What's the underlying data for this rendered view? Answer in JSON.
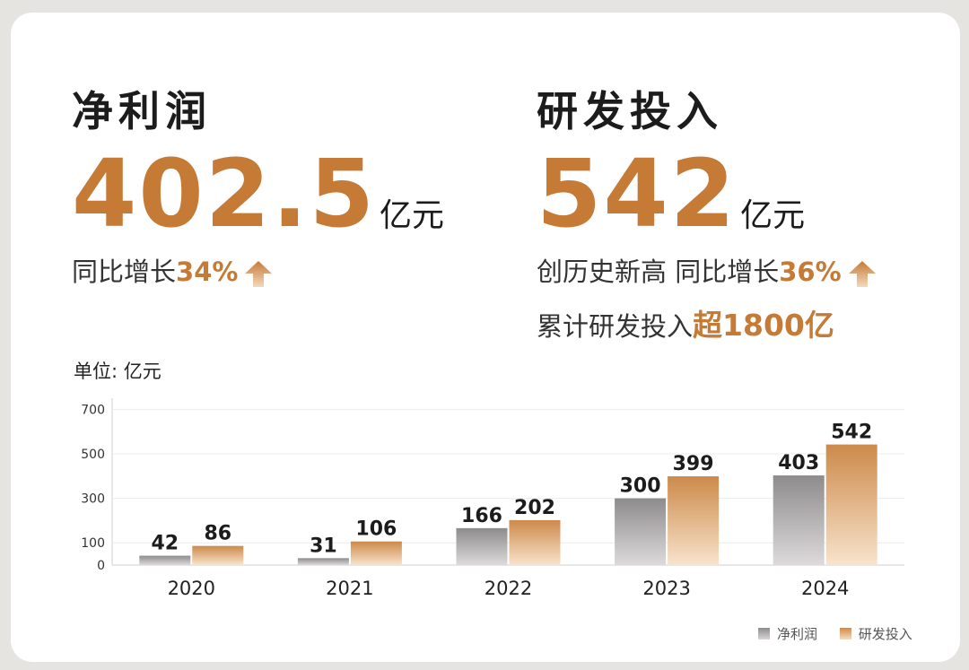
{
  "kpis": {
    "profit": {
      "title": "净利润",
      "value": "402.5",
      "unit": "亿元",
      "growth_prefix": "同比增长",
      "growth_value": "34%"
    },
    "rnd": {
      "title": "研发投入",
      "value": "542",
      "unit": "亿元",
      "record_text": "创历史新高 同比增长",
      "growth_value": "36%",
      "cumulative_prefix": "累计研发投入",
      "cumulative_value": "超1800亿"
    }
  },
  "unit_label": "单位: 亿元",
  "chart_data": {
    "type": "bar",
    "categories": [
      "2020",
      "2021",
      "2022",
      "2023",
      "2024"
    ],
    "series": [
      {
        "name": "净利润",
        "values": [
          42,
          31,
          166,
          300,
          403
        ],
        "color": "#8e8b8c"
      },
      {
        "name": "研发投入",
        "values": [
          86,
          106,
          202,
          399,
          542
        ],
        "color": "#cc8a4a"
      }
    ],
    "yticks": [
      0,
      100,
      300,
      500,
      700
    ],
    "ylim": [
      0,
      750
    ],
    "grid": true,
    "legend": "bottom-right"
  },
  "colors": {
    "accent": "#c57a36",
    "gray_bar": "#8e8b8c",
    "orange_bar": "#cc8a4a"
  }
}
